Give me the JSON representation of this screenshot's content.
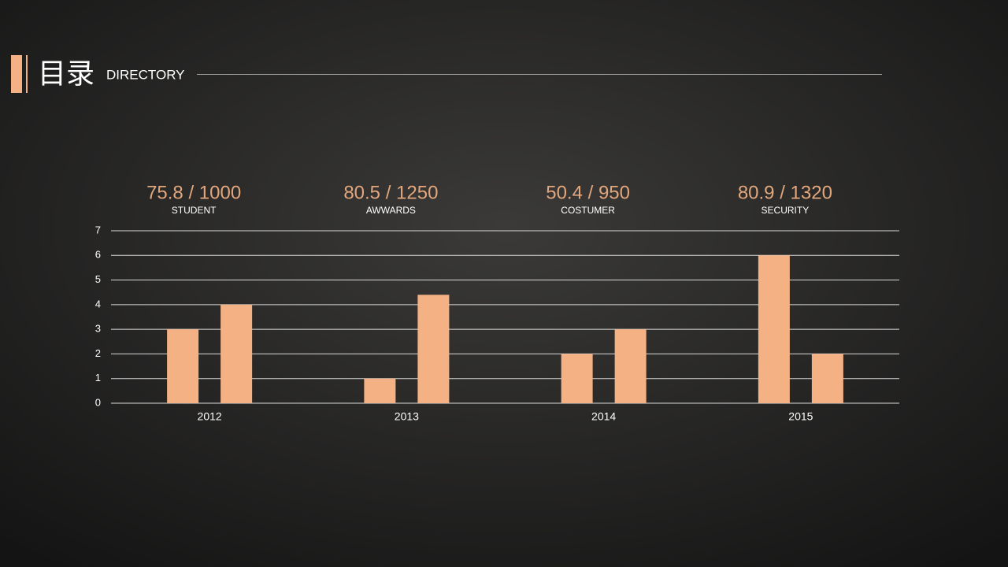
{
  "header": {
    "title": "目录",
    "subtitle": "DIRECTORY"
  },
  "stats": [
    {
      "value": "75.8 / 1000",
      "label": "STUDENT"
    },
    {
      "value": "80.5 / 1250",
      "label": "AWWARDS"
    },
    {
      "value": "50.4 / 950",
      "label": "COSTUMER"
    },
    {
      "value": "80.9 / 1320",
      "label": "SECURITY"
    }
  ],
  "chart_data": {
    "type": "bar",
    "categories": [
      "2012",
      "2013",
      "2014",
      "2015"
    ],
    "series": [
      {
        "color": "#f4b183",
        "values": [
          3,
          1,
          2,
          6
        ]
      },
      {
        "color": "#f4b183",
        "values": [
          4,
          4.4,
          3,
          2
        ]
      }
    ],
    "ylim": [
      0,
      7
    ],
    "yticks": [
      0,
      1,
      2,
      3,
      4,
      5,
      6,
      7
    ],
    "grid": true
  }
}
